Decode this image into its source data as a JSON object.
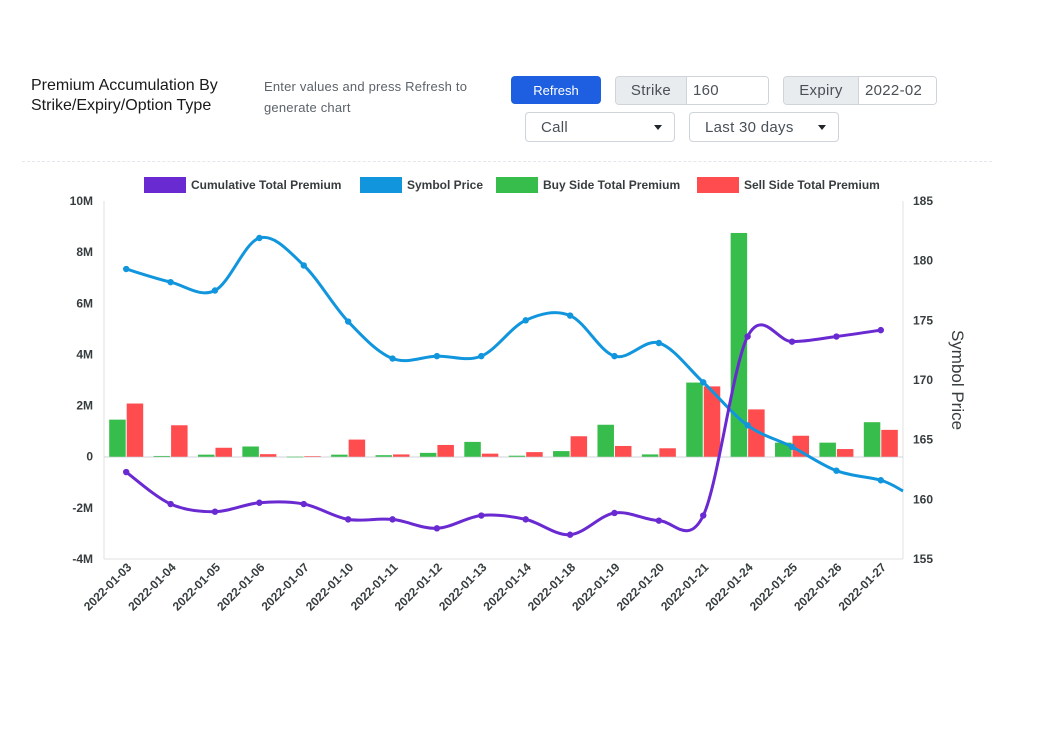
{
  "header": {
    "title": "Premium Accumulation By Strike/Expiry/Option Type",
    "hint": "Enter values and press Refresh to generate chart",
    "refresh_label": "Refresh",
    "strike_label": "Strike",
    "strike_value": "160",
    "expiry_label": "Expiry",
    "expiry_value": "2022-02",
    "option_type": "Call",
    "range": "Last 30 days"
  },
  "colors": {
    "cumulative": "#6a2ad1",
    "price": "#1196de",
    "buy": "#37bd4b",
    "sell": "#ff4d4f",
    "accent": "#1d5fe0"
  },
  "chart_data": {
    "type": "bar",
    "categories": [
      "2022-01-03",
      "2022-01-04",
      "2022-01-05",
      "2022-01-06",
      "2022-01-07",
      "2022-01-10",
      "2022-01-11",
      "2022-01-12",
      "2022-01-13",
      "2022-01-14",
      "2022-01-18",
      "2022-01-19",
      "2022-01-20",
      "2022-01-21",
      "2022-01-24",
      "2022-01-25",
      "2022-01-26",
      "2022-01-27"
    ],
    "series": [
      {
        "name": "Cumulative Total Premium",
        "kind": "line",
        "axis": "left",
        "values": [
          -600000,
          -1850000,
          -2150000,
          -1800000,
          -1850000,
          -2450000,
          -2450000,
          -2800000,
          -2300000,
          -2450000,
          -3050000,
          -2200000,
          -2500000,
          -2300000,
          4700000,
          4500000,
          4700000,
          4950000
        ]
      },
      {
        "name": "Symbol Price",
        "kind": "line",
        "axis": "right",
        "values": [
          179.3,
          178.2,
          177.5,
          181.9,
          179.6,
          174.9,
          171.8,
          172.0,
          172.0,
          175.0,
          175.4,
          172.0,
          173.1,
          169.8,
          166.2,
          164.4,
          162.4,
          161.6
        ]
      },
      {
        "name": "Buy Side Total Premium",
        "kind": "bar",
        "axis": "left",
        "values": [
          1450000,
          30000,
          80000,
          400000,
          0,
          80000,
          60000,
          150000,
          580000,
          40000,
          220000,
          1250000,
          90000,
          2900000,
          8750000,
          550000,
          550000,
          1350000
        ]
      },
      {
        "name": "Sell Side Total Premium",
        "kind": "bar",
        "axis": "left",
        "values": [
          2080000,
          1230000,
          350000,
          100000,
          20000,
          670000,
          90000,
          460000,
          120000,
          180000,
          800000,
          420000,
          330000,
          2750000,
          1850000,
          820000,
          300000,
          1050000
        ]
      }
    ],
    "y_left": {
      "min": -4000000,
      "max": 10000000,
      "ticks": [
        "10M",
        "8M",
        "6M",
        "4M",
        "2M",
        "0",
        "-2M",
        "-4M"
      ]
    },
    "y_right": {
      "min": 155,
      "max": 185,
      "ticks": [
        "185",
        "180",
        "175",
        "170",
        "165",
        "160",
        "155"
      ],
      "title": "Symbol Price"
    },
    "legend_position": "top",
    "grid": false
  }
}
